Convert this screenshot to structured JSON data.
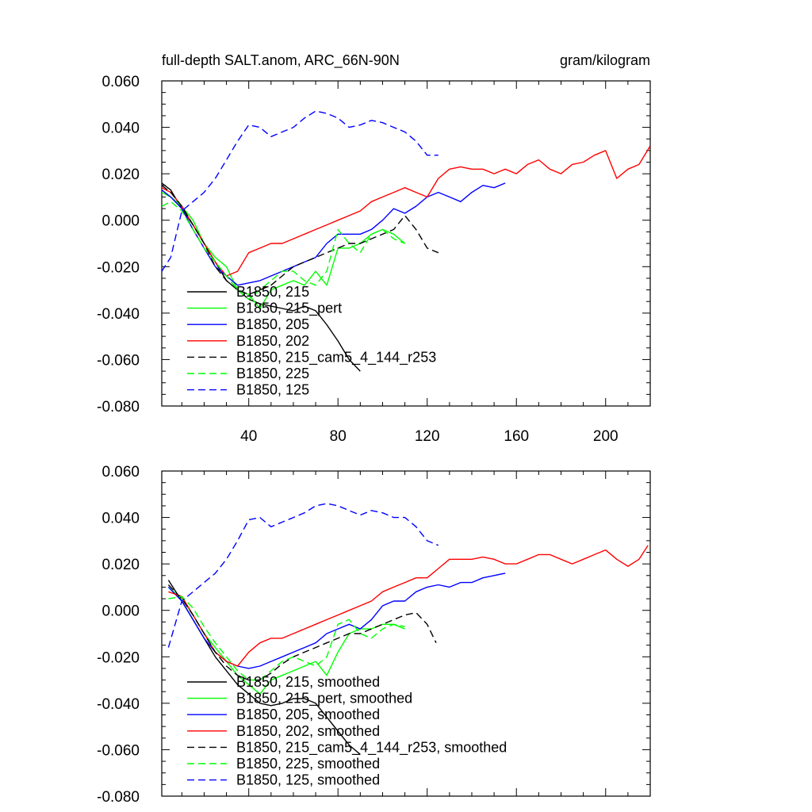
{
  "chart_data": [
    {
      "type": "line",
      "title": "full-depth SALT.anom, ARC_66N-90N",
      "units": "gram/kilogram",
      "xlim": [
        1,
        220
      ],
      "ylim": [
        -0.08,
        0.06
      ],
      "x_ticks": [
        40,
        80,
        120,
        160,
        200
      ],
      "x_tick_labels": [
        "40",
        "80",
        "120",
        "160",
        "200"
      ],
      "y_ticks": [
        0.06,
        0.04,
        0.02,
        0.0,
        -0.02,
        -0.04,
        -0.06,
        -0.08
      ],
      "y_tick_labels": [
        "0.060",
        "0.040",
        "0.020",
        "0.000",
        "-0.020",
        "-0.040",
        "-0.060",
        "-0.080"
      ],
      "legend_position": "bottom-left",
      "series": [
        {
          "name": "B1850, 215",
          "color": "#000000",
          "dash": "solid",
          "x": [
            1,
            5,
            10,
            15,
            20,
            25,
            30,
            35,
            40,
            45,
            50,
            55,
            60,
            65,
            70,
            75,
            80,
            85,
            90
          ],
          "y": [
            0.016,
            0.013,
            0.005,
            -0.002,
            -0.01,
            -0.018,
            -0.026,
            -0.03,
            -0.034,
            -0.036,
            -0.037,
            -0.038,
            -0.039,
            -0.037,
            -0.039,
            -0.045,
            -0.052,
            -0.06,
            -0.065
          ]
        },
        {
          "name": "B1850, 215_pert",
          "color": "#00ff00",
          "dash": "solid",
          "x": [
            1,
            5,
            10,
            15,
            20,
            25,
            30,
            35,
            40,
            45,
            50,
            55,
            60,
            65,
            70,
            75,
            80,
            85,
            90,
            95,
            100,
            105,
            110
          ],
          "y": [
            0.012,
            0.01,
            0.006,
            0.0,
            -0.01,
            -0.016,
            -0.02,
            -0.03,
            -0.032,
            -0.038,
            -0.03,
            -0.028,
            -0.026,
            -0.028,
            -0.022,
            -0.028,
            -0.012,
            -0.012,
            -0.01,
            -0.006,
            -0.004,
            -0.006,
            -0.01
          ]
        },
        {
          "name": "B1850, 205",
          "color": "#0000ff",
          "dash": "solid",
          "x": [
            1,
            5,
            10,
            15,
            20,
            25,
            30,
            35,
            40,
            45,
            50,
            55,
            60,
            65,
            70,
            75,
            80,
            85,
            90,
            95,
            100,
            105,
            110,
            115,
            120,
            125,
            130,
            135,
            140,
            145,
            150,
            155
          ],
          "y": [
            0.013,
            0.01,
            0.005,
            -0.004,
            -0.012,
            -0.02,
            -0.024,
            -0.028,
            -0.027,
            -0.026,
            -0.024,
            -0.022,
            -0.02,
            -0.018,
            -0.016,
            -0.01,
            -0.006,
            -0.006,
            -0.006,
            -0.004,
            0.0,
            0.005,
            0.003,
            0.006,
            0.01,
            0.012,
            0.01,
            0.008,
            0.012,
            0.015,
            0.014,
            0.016
          ]
        },
        {
          "name": "B1850, 202",
          "color": "#ff0000",
          "dash": "solid",
          "x": [
            1,
            5,
            10,
            15,
            20,
            25,
            30,
            35,
            40,
            45,
            50,
            55,
            60,
            65,
            70,
            75,
            80,
            85,
            90,
            95,
            100,
            105,
            110,
            115,
            120,
            125,
            130,
            135,
            140,
            145,
            150,
            155,
            160,
            165,
            170,
            175,
            180,
            185,
            190,
            195,
            200,
            205,
            210,
            215,
            220
          ],
          "y": [
            0.014,
            0.012,
            0.006,
            -0.002,
            -0.01,
            -0.018,
            -0.024,
            -0.022,
            -0.014,
            -0.012,
            -0.01,
            -0.01,
            -0.008,
            -0.006,
            -0.004,
            -0.002,
            0.0,
            0.002,
            0.004,
            0.008,
            0.01,
            0.012,
            0.014,
            0.012,
            0.01,
            0.018,
            0.022,
            0.023,
            0.022,
            0.022,
            0.02,
            0.022,
            0.02,
            0.024,
            0.026,
            0.022,
            0.02,
            0.024,
            0.025,
            0.028,
            0.03,
            0.018,
            0.022,
            0.024,
            0.032
          ]
        },
        {
          "name": "B1850, 215_cam5_4_144_r253",
          "color": "#000000",
          "dash": "dashed",
          "x": [
            1,
            5,
            10,
            15,
            20,
            25,
            30,
            35,
            40,
            45,
            50,
            55,
            60,
            65,
            70,
            75,
            80,
            85,
            90,
            95,
            100,
            105,
            110,
            115,
            120,
            125
          ],
          "y": [
            0.015,
            0.012,
            0.006,
            -0.002,
            -0.01,
            -0.02,
            -0.026,
            -0.03,
            -0.032,
            -0.03,
            -0.028,
            -0.024,
            -0.02,
            -0.018,
            -0.016,
            -0.014,
            -0.012,
            -0.01,
            -0.01,
            -0.008,
            -0.006,
            -0.004,
            0.002,
            -0.004,
            -0.012,
            -0.014
          ]
        },
        {
          "name": "B1850, 225",
          "color": "#00ff00",
          "dash": "dashed",
          "x": [
            1,
            5,
            10,
            15,
            20,
            25,
            30,
            35,
            40,
            45,
            50,
            55,
            60,
            65,
            70,
            75,
            80,
            85,
            90,
            95,
            100,
            105,
            110
          ],
          "y": [
            0.006,
            0.008,
            0.004,
            -0.004,
            -0.012,
            -0.018,
            -0.024,
            -0.03,
            -0.034,
            -0.03,
            -0.026,
            -0.022,
            -0.022,
            -0.026,
            -0.028,
            -0.022,
            -0.004,
            -0.01,
            -0.014,
            -0.006,
            -0.004,
            -0.008,
            -0.01
          ]
        },
        {
          "name": "B1850, 125",
          "color": "#0000ff",
          "dash": "dashed",
          "x": [
            1,
            5,
            10,
            15,
            20,
            25,
            30,
            35,
            40,
            45,
            50,
            55,
            60,
            65,
            70,
            75,
            80,
            85,
            90,
            95,
            100,
            105,
            110,
            115,
            120,
            125
          ],
          "y": [
            -0.022,
            -0.016,
            0.004,
            0.008,
            0.012,
            0.018,
            0.026,
            0.034,
            0.041,
            0.04,
            0.036,
            0.038,
            0.04,
            0.044,
            0.047,
            0.046,
            0.044,
            0.04,
            0.041,
            0.043,
            0.042,
            0.04,
            0.038,
            0.034,
            0.028,
            0.028
          ]
        }
      ]
    },
    {
      "type": "line",
      "xlim": [
        1,
        220
      ],
      "ylim": [
        -0.08,
        0.06
      ],
      "x_ticks": [
        40,
        80,
        120,
        160,
        200
      ],
      "y_ticks": [
        0.06,
        0.04,
        0.02,
        0.0,
        -0.02,
        -0.04,
        -0.06,
        -0.08
      ],
      "y_tick_labels": [
        "0.060",
        "0.040",
        "0.020",
        "0.000",
        "-0.020",
        "-0.040",
        "-0.060",
        "-0.080"
      ],
      "legend_position": "bottom-left",
      "series": [
        {
          "name": "B1850, 215, smoothed",
          "color": "#000000",
          "dash": "solid",
          "x": [
            4,
            10,
            15,
            20,
            25,
            30,
            35,
            40,
            45,
            50,
            55,
            60,
            65,
            70,
            75,
            80,
            85,
            90
          ],
          "y": [
            0.013,
            0.004,
            -0.004,
            -0.012,
            -0.02,
            -0.026,
            -0.032,
            -0.036,
            -0.04,
            -0.041,
            -0.04,
            -0.038,
            -0.038,
            -0.04,
            -0.046,
            -0.052,
            -0.058,
            -0.062
          ]
        },
        {
          "name": "B1850, 215_pert, smoothed",
          "color": "#00ff00",
          "dash": "solid",
          "x": [
            4,
            10,
            15,
            20,
            25,
            30,
            35,
            40,
            45,
            50,
            55,
            60,
            65,
            70,
            75,
            80,
            85,
            90,
            95,
            100,
            105,
            110
          ],
          "y": [
            0.01,
            0.005,
            -0.002,
            -0.01,
            -0.016,
            -0.022,
            -0.028,
            -0.032,
            -0.036,
            -0.03,
            -0.028,
            -0.026,
            -0.024,
            -0.022,
            -0.028,
            -0.018,
            -0.01,
            -0.008,
            -0.008,
            -0.006,
            -0.006,
            -0.008
          ]
        },
        {
          "name": "B1850, 205, smoothed",
          "color": "#0000ff",
          "dash": "solid",
          "x": [
            4,
            10,
            15,
            20,
            25,
            30,
            35,
            40,
            45,
            50,
            55,
            60,
            65,
            70,
            75,
            80,
            85,
            90,
            95,
            100,
            105,
            110,
            115,
            120,
            125,
            130,
            135,
            140,
            145,
            150,
            155
          ],
          "y": [
            0.01,
            0.004,
            -0.004,
            -0.012,
            -0.018,
            -0.022,
            -0.024,
            -0.025,
            -0.024,
            -0.022,
            -0.02,
            -0.018,
            -0.016,
            -0.014,
            -0.01,
            -0.008,
            -0.006,
            -0.008,
            -0.004,
            0.002,
            0.004,
            0.004,
            0.008,
            0.01,
            0.011,
            0.01,
            0.012,
            0.012,
            0.014,
            0.015,
            0.016
          ]
        },
        {
          "name": "B1850, 202, smoothed",
          "color": "#ff0000",
          "dash": "solid",
          "x": [
            4,
            10,
            15,
            20,
            25,
            30,
            35,
            40,
            45,
            50,
            55,
            60,
            65,
            70,
            75,
            80,
            85,
            90,
            95,
            100,
            105,
            110,
            115,
            120,
            125,
            130,
            135,
            140,
            145,
            150,
            155,
            160,
            165,
            170,
            175,
            180,
            185,
            190,
            195,
            200,
            205,
            210,
            215,
            219
          ],
          "y": [
            0.008,
            0.006,
            -0.002,
            -0.01,
            -0.018,
            -0.022,
            -0.024,
            -0.018,
            -0.014,
            -0.012,
            -0.012,
            -0.01,
            -0.008,
            -0.006,
            -0.004,
            -0.002,
            0.0,
            0.002,
            0.004,
            0.008,
            0.01,
            0.012,
            0.014,
            0.014,
            0.018,
            0.022,
            0.022,
            0.022,
            0.023,
            0.022,
            0.02,
            0.02,
            0.022,
            0.024,
            0.024,
            0.022,
            0.02,
            0.022,
            0.024,
            0.026,
            0.022,
            0.019,
            0.022,
            0.028
          ]
        },
        {
          "name": "B1850, 215_cam5_4_144_r253, smoothed",
          "color": "#000000",
          "dash": "dashed",
          "x": [
            4,
            10,
            15,
            20,
            25,
            30,
            35,
            40,
            45,
            50,
            55,
            60,
            65,
            70,
            75,
            80,
            85,
            90,
            95,
            100,
            105,
            110,
            115,
            120,
            124
          ],
          "y": [
            0.011,
            0.005,
            -0.002,
            -0.01,
            -0.018,
            -0.024,
            -0.028,
            -0.03,
            -0.03,
            -0.027,
            -0.023,
            -0.02,
            -0.018,
            -0.016,
            -0.014,
            -0.012,
            -0.01,
            -0.01,
            -0.008,
            -0.006,
            -0.004,
            -0.002,
            -0.001,
            -0.006,
            -0.014
          ]
        },
        {
          "name": "B1850, 225, smoothed",
          "color": "#00ff00",
          "dash": "dashed",
          "x": [
            4,
            10,
            15,
            20,
            25,
            30,
            35,
            40,
            45,
            50,
            55,
            60,
            65,
            70,
            75,
            80,
            85,
            90,
            95,
            100,
            105,
            110
          ],
          "y": [
            0.005,
            0.006,
            0.001,
            -0.007,
            -0.014,
            -0.02,
            -0.026,
            -0.03,
            -0.03,
            -0.026,
            -0.022,
            -0.02,
            -0.022,
            -0.024,
            -0.02,
            -0.006,
            -0.004,
            -0.01,
            -0.012,
            -0.008,
            -0.006,
            -0.007
          ]
        },
        {
          "name": "B1850, 125, smoothed",
          "color": "#0000ff",
          "dash": "dashed",
          "x": [
            4,
            10,
            15,
            20,
            25,
            30,
            35,
            40,
            45,
            50,
            55,
            60,
            65,
            70,
            75,
            80,
            85,
            90,
            95,
            100,
            105,
            110,
            115,
            120,
            125
          ],
          "y": [
            -0.016,
            0.004,
            0.008,
            0.012,
            0.016,
            0.022,
            0.03,
            0.039,
            0.04,
            0.036,
            0.038,
            0.04,
            0.042,
            0.045,
            0.046,
            0.045,
            0.043,
            0.041,
            0.043,
            0.042,
            0.04,
            0.04,
            0.036,
            0.03,
            0.028
          ]
        }
      ]
    }
  ]
}
